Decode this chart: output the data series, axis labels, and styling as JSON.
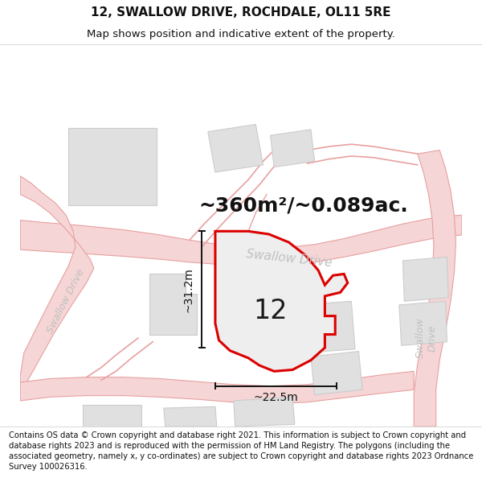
{
  "title": "12, SWALLOW DRIVE, ROCHDALE, OL11 5RE",
  "subtitle": "Map shows position and indicative extent of the property.",
  "area_label": "~360m²/~0.089ac.",
  "number_label": "12",
  "dim_height": "~31.2m",
  "dim_width": "~22.5m",
  "road_label_main": "Swallow Drive",
  "road_label_left": "Swallow Drive",
  "road_label_right": "Swallow\nDrive",
  "footer": "Contains OS data © Crown copyright and database right 2021. This information is subject to Crown copyright and database rights 2023 and is reproduced with the permission of HM Land Registry. The polygons (including the associated geometry, namely x, y co-ordinates) are subject to Crown copyright and database rights 2023 Ordnance Survey 100026316.",
  "bg_color": "#ffffff",
  "map_bg": "#ffffff",
  "road_fill": "#f5d5d5",
  "road_edge": "#e8a0a0",
  "building_fill": "#e0e0e0",
  "building_edge": "#cccccc",
  "plot_fill": "#eeeeee",
  "plot_edge": "#dd0000",
  "plot_lw": 2.2,
  "dim_color": "#111111",
  "road_text_color": "#c0c0c0",
  "title_fontsize": 11,
  "subtitle_fontsize": 9.5,
  "footer_fontsize": 7.2,
  "area_fontsize": 18
}
